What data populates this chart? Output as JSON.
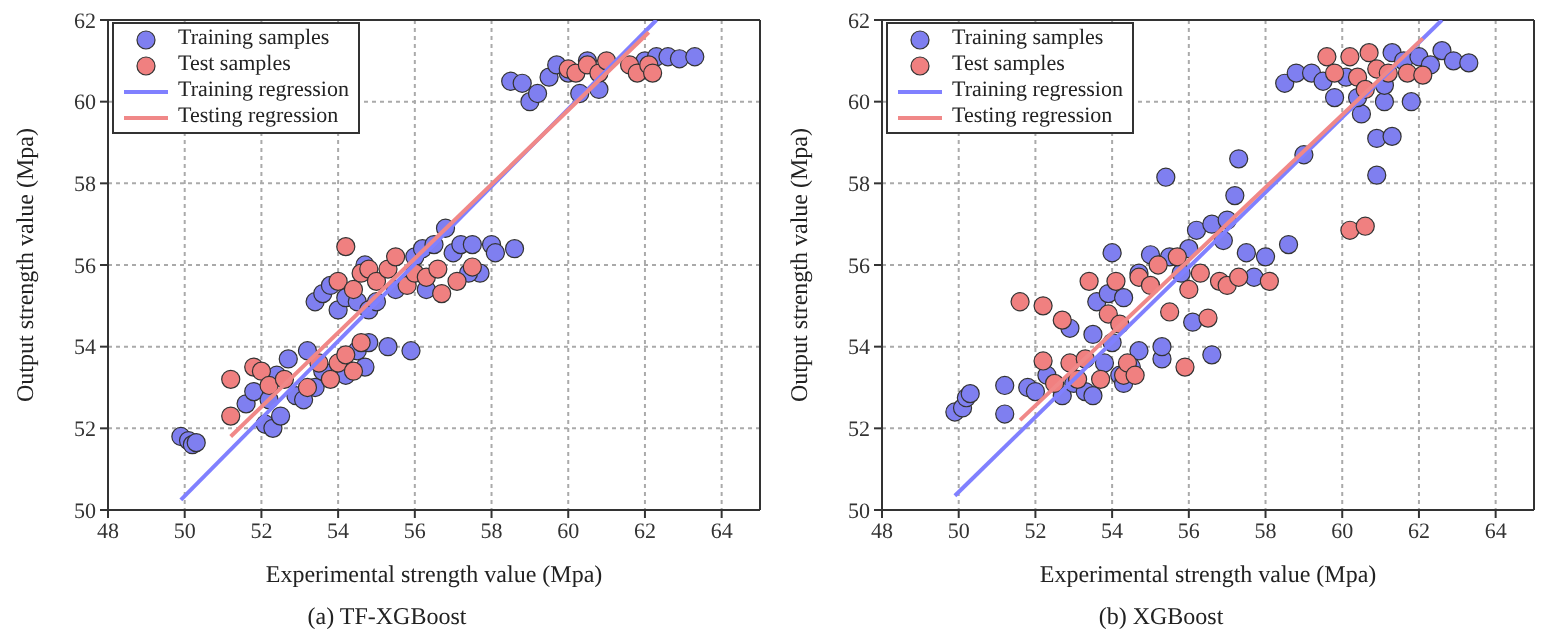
{
  "chart_data": [
    {
      "type": "scatter",
      "title": "(a) TF-XGBoost",
      "xlabel": "Experimental strength value (Mpa)",
      "ylabel": "Output strength value (Mpa)",
      "xlim": [
        48,
        65
      ],
      "ylim": [
        50,
        62
      ],
      "xticks": [
        48,
        50,
        52,
        54,
        56,
        58,
        60,
        62,
        64
      ],
      "yticks": [
        50,
        52,
        54,
        56,
        58,
        60,
        62
      ],
      "grid": true,
      "legend": "top left",
      "series": [
        {
          "name": "Training samples",
          "marker": "circle",
          "color": "#7f7ff0",
          "x": [
            49.9,
            50.1,
            50.2,
            50.3,
            51.6,
            51.8,
            52.1,
            52.3,
            52.5,
            52.2,
            52.4,
            52.7,
            52.9,
            53.1,
            53.2,
            53.4,
            53.6,
            54.2,
            54.5,
            54.8,
            54.7,
            55.3,
            55.9,
            53.4,
            53.6,
            53.8,
            54,
            54.2,
            54.5,
            54.8,
            55,
            55.5,
            56,
            56.2,
            56.5,
            56.8,
            57,
            57.2,
            57.5,
            57.7,
            58,
            58.1,
            58.6,
            57.4,
            56.3,
            54.7,
            58.5,
            58.8,
            59,
            59.2,
            59.5,
            59.7,
            60,
            60.3,
            60.5,
            60.8,
            62,
            62.3,
            62.6,
            62.9,
            63.3
          ],
          "values": [
            51.8,
            51.7,
            51.6,
            51.65,
            52.6,
            52.9,
            52.1,
            52,
            52.3,
            52.7,
            53.3,
            53.7,
            52.8,
            52.7,
            53.9,
            53,
            53.4,
            53.3,
            53.9,
            54.1,
            53.5,
            54,
            53.9,
            55.1,
            55.3,
            55.5,
            54.9,
            55.2,
            55.1,
            54.9,
            55.1,
            55.4,
            56.2,
            56.4,
            56.5,
            56.9,
            56.3,
            56.5,
            56.5,
            55.8,
            56.5,
            56.3,
            56.4,
            55.8,
            55.4,
            56,
            60.5,
            60.45,
            60,
            60.2,
            60.6,
            60.9,
            60.7,
            60.2,
            61,
            60.3,
            61,
            61.1,
            61.1,
            61.05,
            61.1
          ]
        },
        {
          "name": "Test samples",
          "marker": "circle",
          "color": "#f08080",
          "x": [
            51.2,
            51.2,
            51.8,
            52,
            52.2,
            52.6,
            53.2,
            53.5,
            53.8,
            54,
            54.2,
            54.4,
            54.6,
            54,
            54.2,
            54.4,
            54.6,
            54.8,
            55,
            55.3,
            55.5,
            55.8,
            56,
            56.3,
            56.6,
            56.7,
            57.1,
            57.5,
            60,
            60.2,
            60.5,
            60.8,
            61,
            61.6,
            61.8,
            62.1,
            62.2
          ],
          "values": [
            53.2,
            52.3,
            53.5,
            53.4,
            53.05,
            53.2,
            53,
            53.6,
            53.2,
            53.6,
            53.8,
            53.4,
            54.1,
            55.6,
            56.45,
            55.4,
            55.8,
            55.9,
            55.6,
            55.9,
            56.2,
            55.5,
            55.8,
            55.7,
            55.9,
            55.3,
            55.6,
            55.95,
            60.8,
            60.7,
            60.9,
            60.7,
            61,
            60.9,
            60.7,
            60.9,
            60.7
          ]
        },
        {
          "name": "Training regression",
          "type": "line",
          "color": "#8080ff",
          "x": [
            49.9,
            62.3
          ],
          "values": [
            50.25,
            62
          ]
        },
        {
          "name": "Testing regression",
          "type": "line",
          "color": "#f08888",
          "x": [
            51.2,
            62.1
          ],
          "values": [
            51.8,
            61.7
          ]
        }
      ]
    },
    {
      "type": "scatter",
      "title": "(b) XGBoost",
      "xlabel": "Experimental strength value (Mpa)",
      "ylabel": "Output strength value (Mpa)",
      "xlim": [
        48,
        65
      ],
      "ylim": [
        50,
        62
      ],
      "xticks": [
        48,
        50,
        52,
        54,
        56,
        58,
        60,
        62,
        64
      ],
      "yticks": [
        50,
        52,
        54,
        56,
        58,
        60,
        62
      ],
      "grid": true,
      "legend": "top left",
      "series": [
        {
          "name": "Training samples",
          "marker": "circle",
          "color": "#7f7ff0",
          "x": [
            49.9,
            50.1,
            50.2,
            50.3,
            51.2,
            51.2,
            51.8,
            52,
            52.3,
            52.7,
            52.9,
            53,
            53.3,
            53.5,
            53.5,
            53.6,
            53.8,
            54,
            54.2,
            54.3,
            54.5,
            54.7,
            55.3,
            55.3,
            56.1,
            56.6,
            54,
            53.9,
            54.3,
            54.7,
            55,
            55.4,
            55.5,
            55.8,
            56,
            56.2,
            56.6,
            56.9,
            57,
            57.2,
            57.3,
            57.5,
            57.7,
            58,
            58.6,
            59,
            58.5,
            58.8,
            59.2,
            59.5,
            59.8,
            60.1,
            60.5,
            60.4,
            60.9,
            60.9,
            61.1,
            61.3,
            61.8,
            61.3,
            61.6,
            62,
            62.3,
            62.6,
            62.9,
            63.3,
            61.1
          ],
          "values": [
            52.4,
            52.5,
            52.75,
            52.85,
            53.05,
            52.35,
            53,
            52.9,
            53.3,
            52.8,
            54.45,
            53.1,
            52.9,
            52.8,
            54.3,
            55.1,
            53.6,
            54.1,
            53.3,
            53.1,
            53.5,
            53.9,
            53.7,
            54,
            54.6,
            53.8,
            56.3,
            55.3,
            55.2,
            55.8,
            56.25,
            58.15,
            56.2,
            55.8,
            56.4,
            56.85,
            57,
            56.6,
            57.1,
            57.7,
            58.6,
            56.3,
            55.7,
            56.2,
            56.5,
            58.7,
            60.45,
            60.7,
            60.7,
            60.5,
            60.1,
            60.6,
            59.7,
            60.1,
            59.1,
            58.2,
            60,
            59.15,
            60,
            61.2,
            61,
            61.1,
            60.9,
            61.25,
            61,
            60.95,
            60.4
          ]
        },
        {
          "name": "Test samples",
          "marker": "circle",
          "color": "#f08080",
          "x": [
            51.6,
            52.2,
            52.2,
            52.5,
            52.7,
            52.9,
            53.1,
            53.3,
            53.4,
            53.7,
            53.9,
            54.1,
            54.2,
            54.3,
            54.4,
            54.6,
            54.7,
            55,
            55.2,
            55.5,
            55.7,
            55.9,
            56,
            56.3,
            56.5,
            56.8,
            57,
            57.3,
            58.1,
            59.6,
            59.8,
            60.2,
            60.2,
            60.4,
            60.6,
            60.7,
            60.9,
            61.2,
            61.7,
            62.1,
            60.6
          ],
          "values": [
            55.1,
            55,
            53.65,
            53.1,
            54.65,
            53.6,
            53.2,
            53.7,
            55.6,
            53.2,
            54.8,
            55.6,
            54.55,
            53.3,
            53.6,
            53.3,
            55.7,
            55.5,
            56,
            54.85,
            56.2,
            53.5,
            55.4,
            55.8,
            54.7,
            55.6,
            55.5,
            55.7,
            55.6,
            61.1,
            60.7,
            61.1,
            56.85,
            60.6,
            56.95,
            61.2,
            60.8,
            60.7,
            60.7,
            60.65,
            60.3
          ]
        },
        {
          "name": "Training regression",
          "type": "line",
          "color": "#8080ff",
          "x": [
            49.9,
            62.6
          ],
          "values": [
            50.35,
            62
          ]
        },
        {
          "name": "Testing regression",
          "type": "line",
          "color": "#f08888",
          "x": [
            51.6,
            62.1
          ],
          "values": [
            52.2,
            61.55
          ]
        }
      ]
    }
  ]
}
